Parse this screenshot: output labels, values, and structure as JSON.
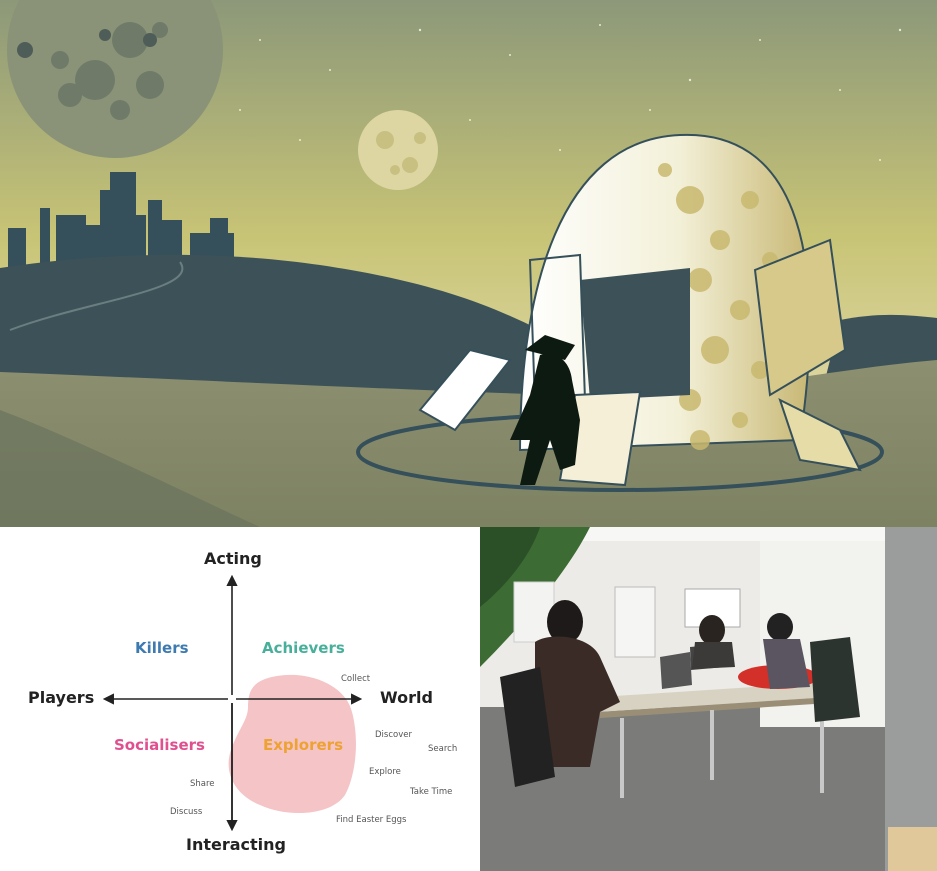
{
  "colors": {
    "sky_top": "#8c9879",
    "sky_mid": "#c8c476",
    "sky_low": "#e4ddb0",
    "hill": "#3d5258",
    "ground": "#8b8e6d",
    "blob": "#f4c4c7",
    "killers": "#3d7ab0",
    "achievers": "#48b09a",
    "socialisers": "#e0508e",
    "explorers": "#eda232"
  },
  "diagram": {
    "axes": {
      "top": "Acting",
      "bottom": "Interacting",
      "left": "Players",
      "right": "World"
    },
    "quadrants": {
      "killers": "Killers",
      "achievers": "Achievers",
      "socialisers": "Socialisers",
      "explorers": "Explorers"
    },
    "verbs": {
      "collect": "Collect",
      "discover": "Discover",
      "search": "Search",
      "explore": "Explore",
      "take_time": "Take Time",
      "find_easter_eggs": "Find Easter Eggs",
      "share": "Share",
      "discuss": "Discuss"
    }
  }
}
